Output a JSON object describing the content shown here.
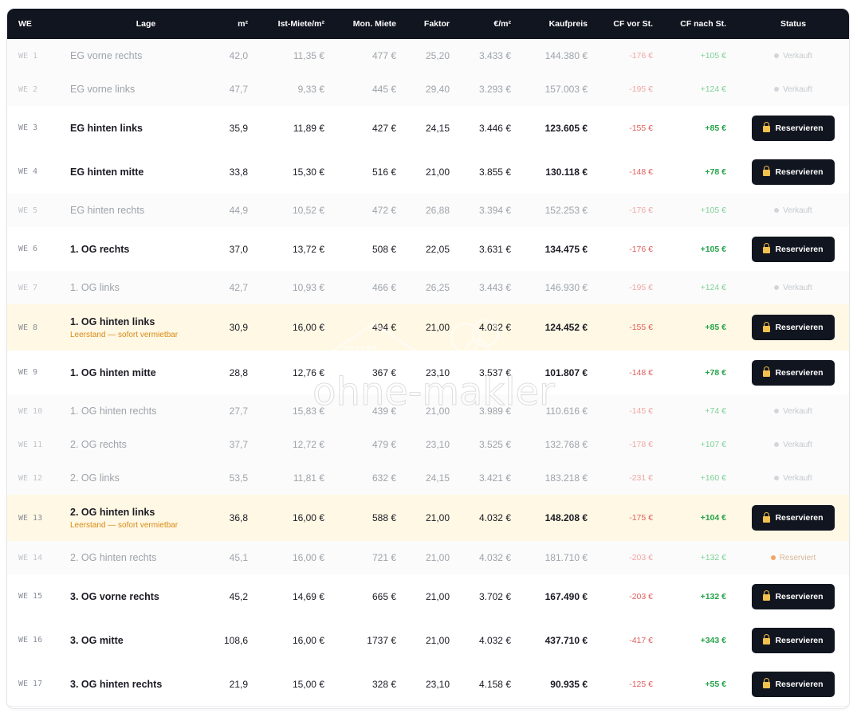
{
  "columns": {
    "we": "WE",
    "lage": "Lage",
    "m2": "m²",
    "ist": "Ist-Miete/m²",
    "mon": "Mon. Miete",
    "faktor": "Faktor",
    "eur_m2": "€/m²",
    "kaufpreis": "Kaufpreis",
    "cf_vor": "CF vor St.",
    "cf_nach": "CF nach St.",
    "status": "Status"
  },
  "watermark": "ohne-makler",
  "rows": [
    {
      "we": "WE 1",
      "lage": "EG vorne rechts",
      "sub": "",
      "m2": "42,0",
      "ist": "11,35 €",
      "mon": "477 €",
      "faktor": "25,20",
      "eur": "3.433 €",
      "kauf": "144.380 €",
      "cfv": "-176 €",
      "cfn": "+105 €",
      "status": "Verkauft",
      "state": "sold"
    },
    {
      "we": "WE 2",
      "lage": "EG vorne links",
      "sub": "",
      "m2": "47,7",
      "ist": "9,33 €",
      "mon": "445 €",
      "faktor": "29,40",
      "eur": "3.293 €",
      "kauf": "157.003 €",
      "cfv": "-195 €",
      "cfn": "+124 €",
      "status": "Verkauft",
      "state": "sold"
    },
    {
      "we": "WE 3",
      "lage": "EG hinten links",
      "sub": "",
      "m2": "35,9",
      "ist": "11,89 €",
      "mon": "427 €",
      "faktor": "24,15",
      "eur": "3.446 €",
      "kauf": "123.605 €",
      "cfv": "-155 €",
      "cfn": "+85 €",
      "status": "Reservieren",
      "state": "open"
    },
    {
      "we": "WE 4",
      "lage": "EG hinten mitte",
      "sub": "",
      "m2": "33,8",
      "ist": "15,30 €",
      "mon": "516 €",
      "faktor": "21,00",
      "eur": "3.855 €",
      "kauf": "130.118 €",
      "cfv": "-148 €",
      "cfn": "+78 €",
      "status": "Reservieren",
      "state": "open"
    },
    {
      "we": "WE 5",
      "lage": "EG hinten rechts",
      "sub": "",
      "m2": "44,9",
      "ist": "10,52 €",
      "mon": "472 €",
      "faktor": "26,88",
      "eur": "3.394 €",
      "kauf": "152.253 €",
      "cfv": "-176 €",
      "cfn": "+105 €",
      "status": "Verkauft",
      "state": "sold"
    },
    {
      "we": "WE 6",
      "lage": "1. OG rechts",
      "sub": "",
      "m2": "37,0",
      "ist": "13,72 €",
      "mon": "508 €",
      "faktor": "22,05",
      "eur": "3.631 €",
      "kauf": "134.475 €",
      "cfv": "-176 €",
      "cfn": "+105 €",
      "status": "Reservieren",
      "state": "open"
    },
    {
      "we": "WE 7",
      "lage": "1. OG links",
      "sub": "",
      "m2": "42,7",
      "ist": "10,93 €",
      "mon": "466 €",
      "faktor": "26,25",
      "eur": "3.443 €",
      "kauf": "146.930 €",
      "cfv": "-195 €",
      "cfn": "+124 €",
      "status": "Verkauft",
      "state": "sold"
    },
    {
      "we": "WE 8",
      "lage": "1. OG hinten links",
      "sub": "Leerstand — sofort vermietbar",
      "m2": "30,9",
      "ist": "16,00 €",
      "mon": "494 €",
      "faktor": "21,00",
      "eur": "4.032 €",
      "kauf": "124.452 €",
      "cfv": "-155 €",
      "cfn": "+85 €",
      "status": "Reservieren",
      "state": "vacant"
    },
    {
      "we": "WE 9",
      "lage": "1. OG hinten mitte",
      "sub": "",
      "m2": "28,8",
      "ist": "12,76 €",
      "mon": "367 €",
      "faktor": "23,10",
      "eur": "3.537 €",
      "kauf": "101.807 €",
      "cfv": "-148 €",
      "cfn": "+78 €",
      "status": "Reservieren",
      "state": "open"
    },
    {
      "we": "WE 10",
      "lage": "1. OG hinten rechts",
      "sub": "",
      "m2": "27,7",
      "ist": "15,83 €",
      "mon": "439 €",
      "faktor": "21,00",
      "eur": "3.989 €",
      "kauf": "110.616 €",
      "cfv": "-145 €",
      "cfn": "+74 €",
      "status": "Verkauft",
      "state": "sold"
    },
    {
      "we": "WE 11",
      "lage": "2. OG rechts",
      "sub": "",
      "m2": "37,7",
      "ist": "12,72 €",
      "mon": "479 €",
      "faktor": "23,10",
      "eur": "3.525 €",
      "kauf": "132.768 €",
      "cfv": "-178 €",
      "cfn": "+107 €",
      "status": "Verkauft",
      "state": "sold"
    },
    {
      "we": "WE 12",
      "lage": "2. OG links",
      "sub": "",
      "m2": "53,5",
      "ist": "11,81 €",
      "mon": "632 €",
      "faktor": "24,15",
      "eur": "3.421 €",
      "kauf": "183.218 €",
      "cfv": "-231 €",
      "cfn": "+160 €",
      "status": "Verkauft",
      "state": "sold"
    },
    {
      "we": "WE 13",
      "lage": "2. OG hinten links",
      "sub": "Leerstand — sofort vermietbar",
      "m2": "36,8",
      "ist": "16,00 €",
      "mon": "588 €",
      "faktor": "21,00",
      "eur": "4.032 €",
      "kauf": "148.208 €",
      "cfv": "-175 €",
      "cfn": "+104 €",
      "status": "Reservieren",
      "state": "vacant"
    },
    {
      "we": "WE 14",
      "lage": "2. OG hinten rechts",
      "sub": "",
      "m2": "45,1",
      "ist": "16,00 €",
      "mon": "721 €",
      "faktor": "21,00",
      "eur": "4.032 €",
      "kauf": "181.710 €",
      "cfv": "-203 €",
      "cfn": "+132 €",
      "status": "Reserviert",
      "state": "reserved"
    },
    {
      "we": "WE 15",
      "lage": "3. OG vorne rechts",
      "sub": "",
      "m2": "45,2",
      "ist": "14,69 €",
      "mon": "665 €",
      "faktor": "21,00",
      "eur": "3.702 €",
      "kauf": "167.490 €",
      "cfv": "-203 €",
      "cfn": "+132 €",
      "status": "Reservieren",
      "state": "open"
    },
    {
      "we": "WE 16",
      "lage": "3. OG mitte",
      "sub": "",
      "m2": "108,6",
      "ist": "16,00 €",
      "mon": "1737 €",
      "faktor": "21,00",
      "eur": "4.032 €",
      "kauf": "437.710 €",
      "cfv": "-417 €",
      "cfn": "+343 €",
      "status": "Reservieren",
      "state": "open"
    },
    {
      "we": "WE 17",
      "lage": "3. OG hinten rechts",
      "sub": "",
      "m2": "21,9",
      "ist": "15,00 €",
      "mon": "328 €",
      "faktor": "23,10",
      "eur": "4.158 €",
      "kauf": "90.935 €",
      "cfv": "-125 €",
      "cfn": "+55 €",
      "status": "Reservieren",
      "state": "open"
    }
  ]
}
